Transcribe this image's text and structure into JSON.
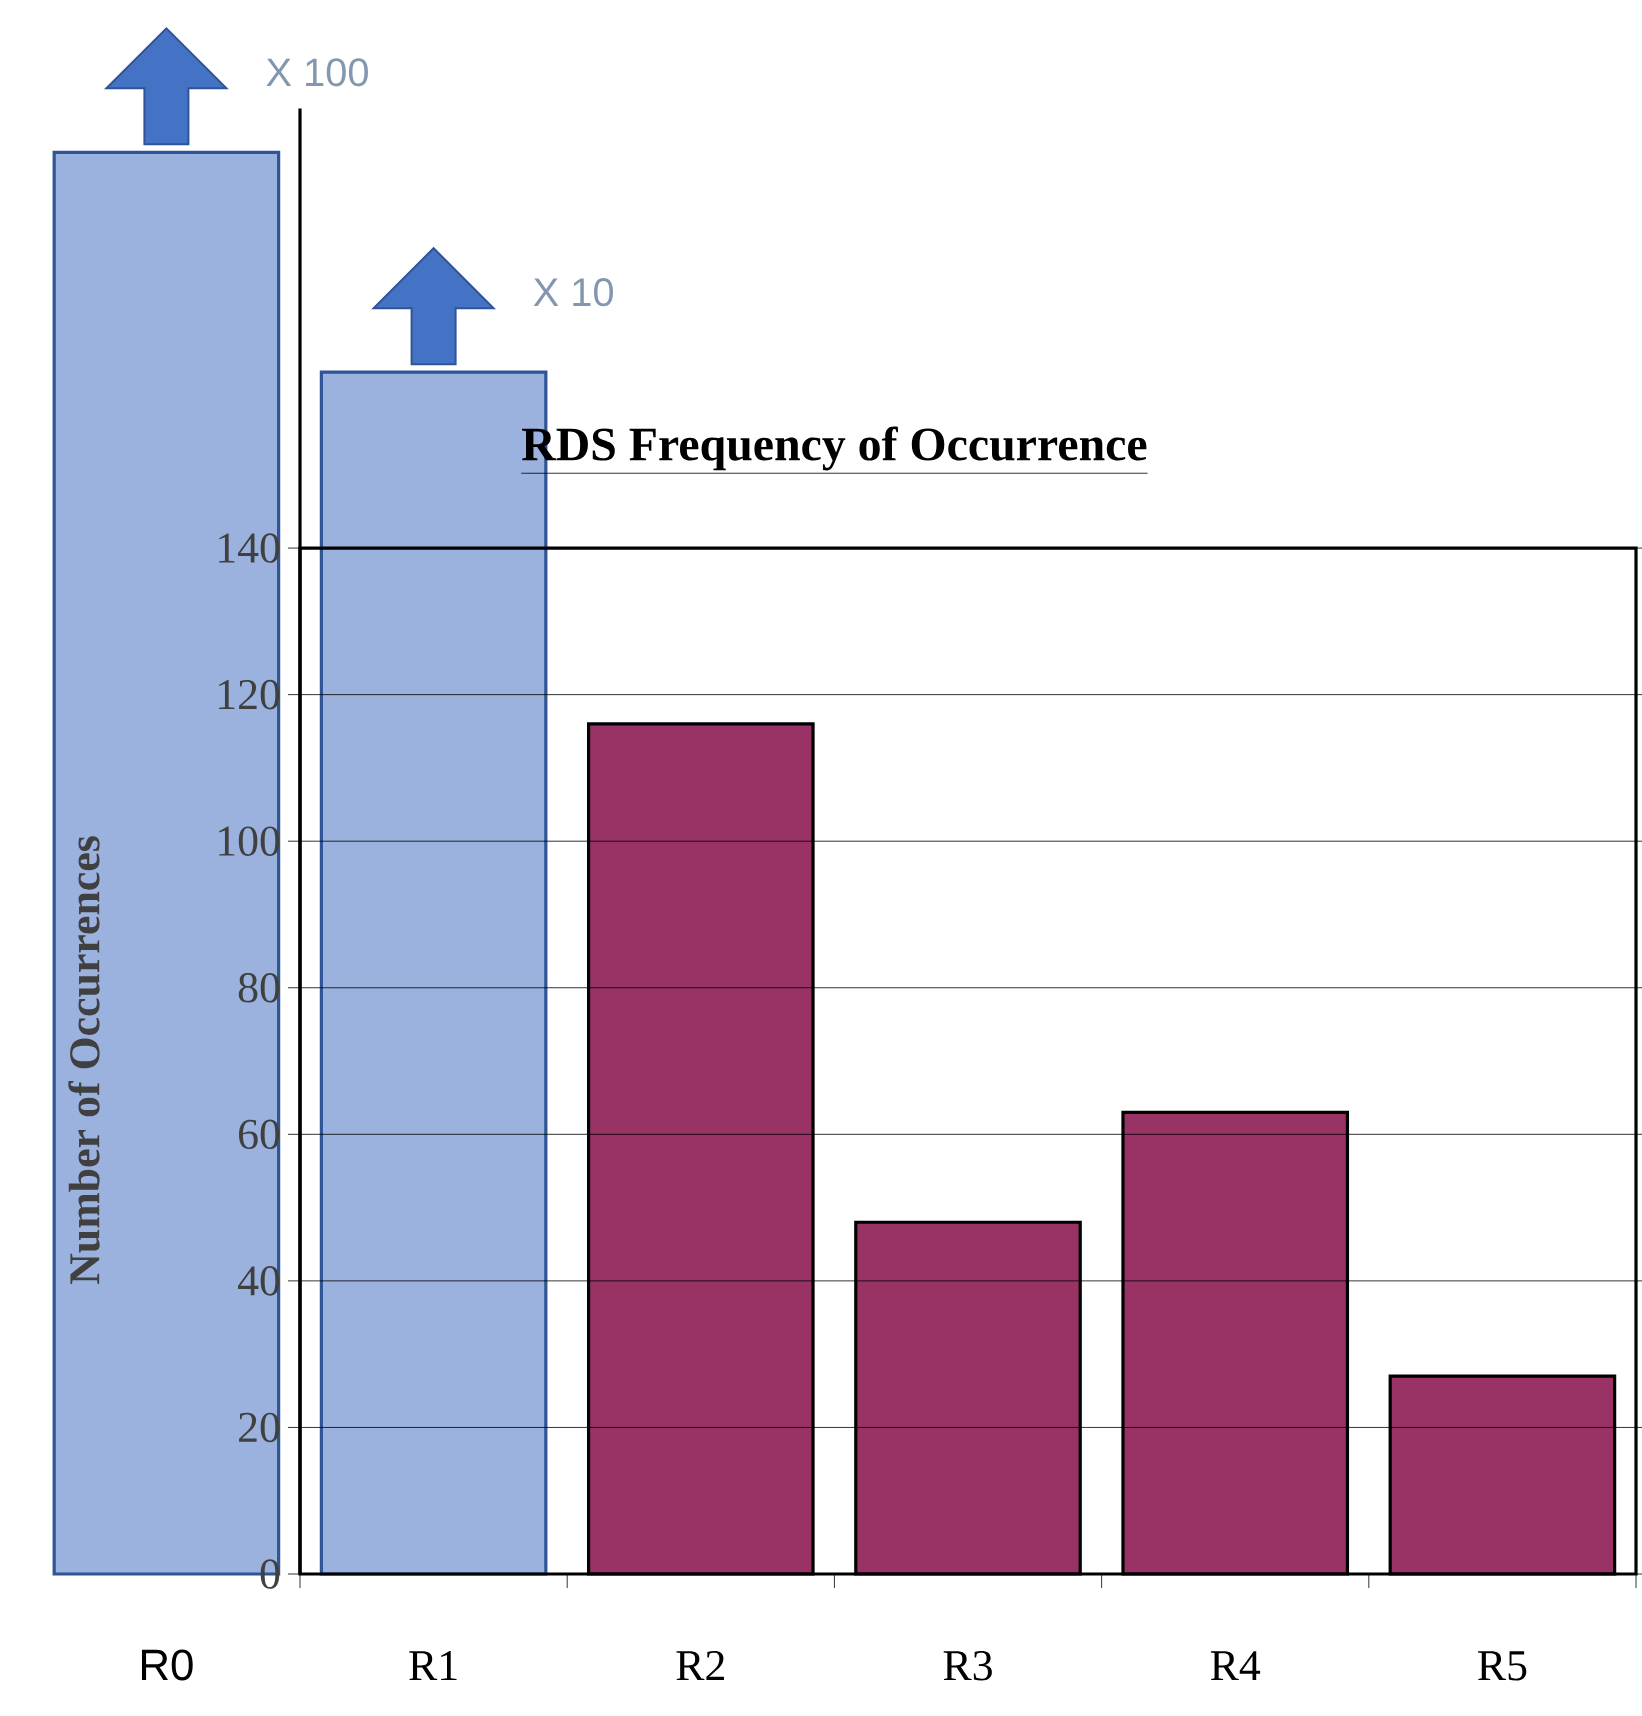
{
  "chart_data": {
    "type": "bar",
    "title": "RDS Frequency of Occurrence",
    "ylabel": "Number of Occurrences",
    "categories": [
      "R0",
      "R1",
      "R2",
      "R3",
      "R4",
      "R5"
    ],
    "series": [
      {
        "color": "#9bb2df",
        "values": [
          194,
          164,
          null,
          null,
          null,
          null
        ]
      },
      {
        "color": "#993366",
        "values": [
          null,
          null,
          116,
          48,
          63,
          27
        ]
      }
    ],
    "ylim": [
      0,
      200
    ],
    "yticks": [
      0,
      20,
      40,
      60,
      80,
      100,
      120,
      140
    ],
    "grid": "y",
    "annotations": [
      "X 100",
      "X 10"
    ]
  }
}
